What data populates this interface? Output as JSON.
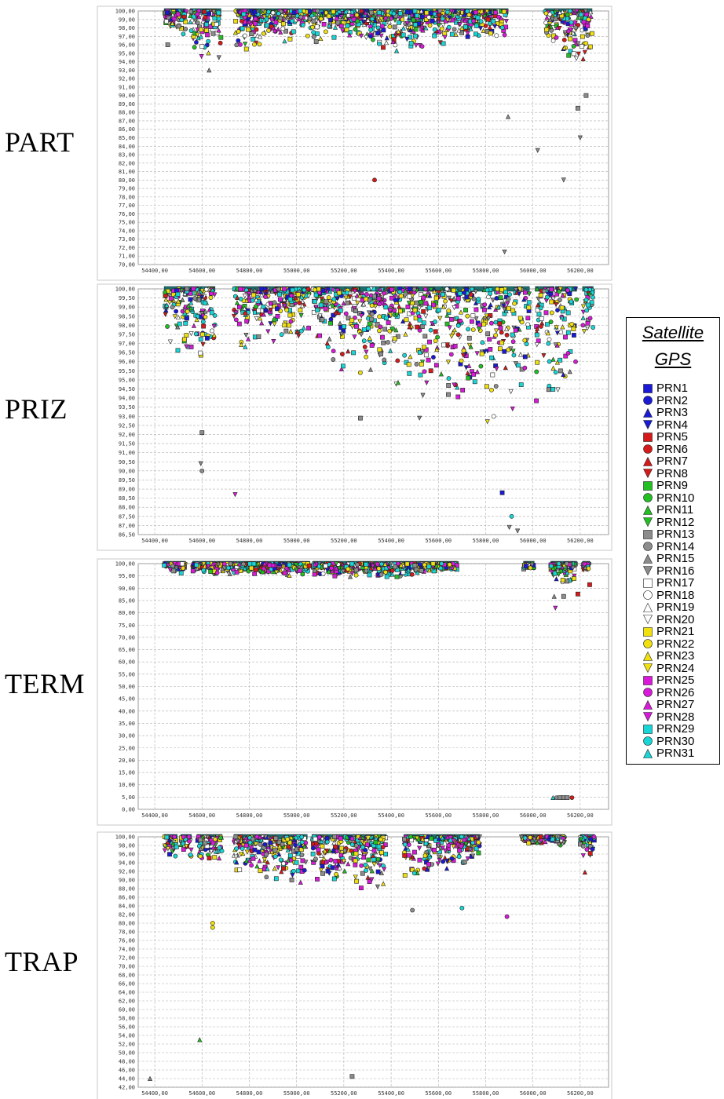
{
  "legend": {
    "title_line1": "Satellite",
    "title_line2": "GPS",
    "items": [
      {
        "label": "PRN1",
        "color": "#1a1ad6",
        "shape": "square"
      },
      {
        "label": "PRN2",
        "color": "#1a1ad6",
        "shape": "circle"
      },
      {
        "label": "PRN3",
        "color": "#1a1ad6",
        "shape": "triangle-up"
      },
      {
        "label": "PRN4",
        "color": "#1a1ad6",
        "shape": "triangle-down"
      },
      {
        "label": "PRN5",
        "color": "#d61a1a",
        "shape": "square"
      },
      {
        "label": "PRN6",
        "color": "#d61a1a",
        "shape": "circle"
      },
      {
        "label": "PRN7",
        "color": "#d61a1a",
        "shape": "triangle-up"
      },
      {
        "label": "PRN8",
        "color": "#d61a1a",
        "shape": "triangle-down"
      },
      {
        "label": "PRN9",
        "color": "#22c022",
        "shape": "square"
      },
      {
        "label": "PRN10",
        "color": "#22c022",
        "shape": "circle"
      },
      {
        "label": "PRN11",
        "color": "#22c022",
        "shape": "triangle-up"
      },
      {
        "label": "PRN12",
        "color": "#22c022",
        "shape": "triangle-down"
      },
      {
        "label": "PRN13",
        "color": "#8c8c8c",
        "shape": "square"
      },
      {
        "label": "PRN14",
        "color": "#8c8c8c",
        "shape": "circle"
      },
      {
        "label": "PRN15",
        "color": "#8c8c8c",
        "shape": "triangle-up"
      },
      {
        "label": "PRN16",
        "color": "#8c8c8c",
        "shape": "triangle-down"
      },
      {
        "label": "PRN17",
        "color": "#ffffff",
        "shape": "square"
      },
      {
        "label": "PRN18",
        "color": "#ffffff",
        "shape": "circle"
      },
      {
        "label": "PRN19",
        "color": "#ffffff",
        "shape": "triangle-up"
      },
      {
        "label": "PRN20",
        "color": "#ffffff",
        "shape": "triangle-down"
      },
      {
        "label": "PRN21",
        "color": "#f0e010",
        "shape": "square"
      },
      {
        "label": "PRN22",
        "color": "#f0e010",
        "shape": "circle"
      },
      {
        "label": "PRN23",
        "color": "#f0e010",
        "shape": "triangle-up"
      },
      {
        "label": "PRN24",
        "color": "#f0e010",
        "shape": "triangle-down"
      },
      {
        "label": "PRN25",
        "color": "#d81ad8",
        "shape": "square"
      },
      {
        "label": "PRN26",
        "color": "#d81ad8",
        "shape": "circle"
      },
      {
        "label": "PRN27",
        "color": "#d81ad8",
        "shape": "triangle-up"
      },
      {
        "label": "PRN28",
        "color": "#d81ad8",
        "shape": "triangle-down"
      },
      {
        "label": "PRN29",
        "color": "#19d6d6",
        "shape": "square"
      },
      {
        "label": "PRN30",
        "color": "#19d6d6",
        "shape": "circle"
      },
      {
        "label": "PRN31",
        "color": "#19d6d6",
        "shape": "triangle-up"
      }
    ]
  },
  "chart_data": [
    {
      "type": "scatter",
      "station": "PART",
      "xlim": [
        54330,
        56320
      ],
      "xticks": [
        "54400,00",
        "54600,00",
        "54800,00",
        "55000,00",
        "55200,00",
        "55400,00",
        "55600,00",
        "55800,00",
        "56000,00",
        "56200,00"
      ],
      "ylim": [
        70,
        100
      ],
      "yticks": [
        "100,00",
        "99,00",
        "98,00",
        "97,00",
        "96,00",
        "95,00",
        "94,00",
        "93,00",
        "92,00",
        "91,00",
        "90,00",
        "89,00",
        "88,00",
        "87,00",
        "86,00",
        "85,00",
        "84,00",
        "83,00",
        "82,00",
        "81,00",
        "80,00",
        "79,00",
        "78,00",
        "77,00",
        "76,00",
        "75,00",
        "74,00",
        "73,00",
        "72,00",
        "71,00",
        "70,00"
      ],
      "bands": [
        [
          54440,
          54530
        ],
        [
          54550,
          54680
        ],
        [
          54740,
          55060
        ],
        [
          55065,
          55895
        ],
        [
          56050,
          56250
        ]
      ],
      "density": [
        [
          54450,
          98.2
        ],
        [
          54600,
          94
        ],
        [
          54800,
          95.5
        ],
        [
          55000,
          96
        ],
        [
          55200,
          96.5
        ],
        [
          55400,
          95
        ],
        [
          55600,
          96
        ],
        [
          55800,
          97
        ],
        [
          56100,
          96
        ],
        [
          56200,
          92
        ]
      ],
      "outliers": [
        [
          54455,
          96
        ],
        [
          54630,
          93
        ],
        [
          55330,
          80,
          "PRN6"
        ],
        [
          55880,
          71.5,
          "PRN16"
        ],
        [
          55895,
          87.5
        ],
        [
          56020,
          83.5
        ],
        [
          56130,
          80
        ],
        [
          56190,
          88.5
        ],
        [
          56200,
          85
        ],
        [
          56225,
          90
        ]
      ]
    },
    {
      "type": "scatter",
      "station": "PRIZ",
      "xlim": [
        54330,
        56320
      ],
      "xticks": [
        "54400,00",
        "54600,00",
        "54800,00",
        "55000,00",
        "55200,00",
        "55400,00",
        "55600,00",
        "55800,00",
        "56000,00",
        "56200,00"
      ],
      "ylim": [
        86.5,
        100
      ],
      "yticks": [
        "100,00",
        "99,50",
        "99,00",
        "98,50",
        "98,00",
        "97,50",
        "97,00",
        "96,50",
        "96,00",
        "95,50",
        "95,00",
        "94,50",
        "94,00",
        "93,50",
        "93,00",
        "92,50",
        "92,00",
        "91,50",
        "91,00",
        "90,50",
        "90,00",
        "89,50",
        "89,00",
        "88,50",
        "88,00",
        "87,50",
        "87,00",
        "86,50"
      ],
      "bands": [
        [
          54440,
          54655
        ],
        [
          54735,
          55055
        ],
        [
          55070,
          55985
        ],
        [
          56010,
          56090
        ],
        [
          56095,
          56185
        ],
        [
          56210,
          56255
        ]
      ],
      "density": [
        [
          54450,
          97
        ],
        [
          54600,
          96
        ],
        [
          54800,
          97
        ],
        [
          55000,
          97.5
        ],
        [
          55200,
          95.5
        ],
        [
          55400,
          94.5
        ],
        [
          55600,
          94
        ],
        [
          55800,
          92
        ],
        [
          55900,
          92
        ],
        [
          56050,
          93.5
        ],
        [
          56150,
          93
        ],
        [
          56240,
          97.5
        ]
      ],
      "outliers": [
        [
          54740,
          88.7,
          "PRN28"
        ],
        [
          54595,
          90.4
        ],
        [
          54600,
          90
        ],
        [
          55870,
          88.8,
          "PRN1"
        ],
        [
          55910,
          87.5,
          "PRN30"
        ],
        [
          55900,
          86.9
        ],
        [
          55935,
          86.7
        ],
        [
          55270,
          92.9
        ],
        [
          55520,
          92.9
        ],
        [
          54600,
          92.1
        ]
      ]
    },
    {
      "type": "scatter",
      "station": "TERM",
      "xlim": [
        54330,
        56320
      ],
      "xticks": [
        "54400,00",
        "54600,00",
        "54800,00",
        "55000,00",
        "55200,00",
        "55400,00",
        "55600,00",
        "55800,00",
        "56000,00",
        "56200,00"
      ],
      "ylim": [
        -5,
        100
      ],
      "yticks": [
        "100,00",
        "95,00",
        "90,00",
        "85,00",
        "80,00",
        "75,00",
        "70,00",
        "65,00",
        "60,00",
        "55,00",
        "50,00",
        "45,00",
        "40,00",
        "35,00",
        "30,00",
        "25,00",
        "20,00",
        "15,00",
        "10,00",
        "5,00",
        "0,00"
      ],
      "bands": [
        [
          54440,
          54530
        ],
        [
          54560,
          55055
        ],
        [
          55070,
          55680
        ],
        [
          55960,
          56005
        ],
        [
          56075,
          56185
        ],
        [
          56210,
          56240
        ]
      ],
      "density": [
        [
          54450,
          97
        ],
        [
          54600,
          95
        ],
        [
          54800,
          95.5
        ],
        [
          55000,
          95
        ],
        [
          55200,
          94.5
        ],
        [
          55400,
          94
        ],
        [
          55600,
          96.5
        ],
        [
          55980,
          97.5
        ],
        [
          56100,
          92
        ],
        [
          56150,
          90
        ],
        [
          56220,
          97
        ]
      ],
      "outliers": [
        [
          56095,
          81,
          "PRN28"
        ],
        [
          56090,
          86
        ],
        [
          56130,
          86
        ],
        [
          56190,
          87,
          "PRN5"
        ],
        [
          56240,
          91,
          "PRN5"
        ],
        [
          56085,
          0,
          "PRN31"
        ],
        [
          56100,
          0
        ],
        [
          56115,
          0
        ],
        [
          56130,
          0
        ],
        [
          56145,
          0
        ],
        [
          56165,
          0,
          "PRN6"
        ]
      ]
    },
    {
      "type": "scatter",
      "station": "TRAP",
      "xlim": [
        54330,
        56320
      ],
      "xticks": [
        "54400,00",
        "54600,00",
        "54800,00",
        "55000,00",
        "55200,00",
        "55400,00",
        "55600,00",
        "55800,00",
        "56000,00",
        "56200,00"
      ],
      "ylim": [
        42,
        100
      ],
      "yticks": [
        "100,00",
        "98,00",
        "96,00",
        "94,00",
        "92,00",
        "90,00",
        "88,00",
        "86,00",
        "84,00",
        "82,00",
        "80,00",
        "78,00",
        "76,00",
        "74,00",
        "72,00",
        "70,00",
        "68,00",
        "66,00",
        "64,00",
        "62,00",
        "60,00",
        "58,00",
        "56,00",
        "54,00",
        "52,00",
        "50,00",
        "48,00",
        "46,00",
        "44,00",
        "42,00"
      ],
      "bands": [
        [
          54440,
          54495
        ],
        [
          54510,
          54555
        ],
        [
          54580,
          54685
        ],
        [
          54735,
          54815
        ],
        [
          54815,
          55045
        ],
        [
          55065,
          55380
        ],
        [
          55455,
          55775
        ],
        [
          55950,
          56040
        ],
        [
          56050,
          56135
        ],
        [
          56200,
          56260
        ]
      ],
      "density": [
        [
          54460,
          96
        ],
        [
          54530,
          95
        ],
        [
          54620,
          93
        ],
        [
          54980,
          89
        ],
        [
          55200,
          89
        ],
        [
          55330,
          88
        ],
        [
          55500,
          87
        ],
        [
          55550,
          91
        ],
        [
          55990,
          98.5
        ],
        [
          56090,
          98.5
        ],
        [
          56220,
          95
        ]
      ],
      "outliers": [
        [
          54590,
          53,
          "PRN11"
        ],
        [
          54645,
          80,
          "PRN22"
        ],
        [
          54645,
          79,
          "PRN22"
        ],
        [
          55235,
          44.5
        ],
        [
          55700,
          83.5,
          "PRN30"
        ],
        [
          55890,
          81.5,
          "PRN26"
        ],
        [
          55490,
          83
        ],
        [
          54380,
          44
        ],
        [
          56220,
          91.8,
          "PRN7"
        ]
      ]
    }
  ],
  "panels": {
    "part_label": "PART",
    "priz_label": "PRIZ",
    "term_label": "TERM",
    "trap_label": "TRAP"
  }
}
